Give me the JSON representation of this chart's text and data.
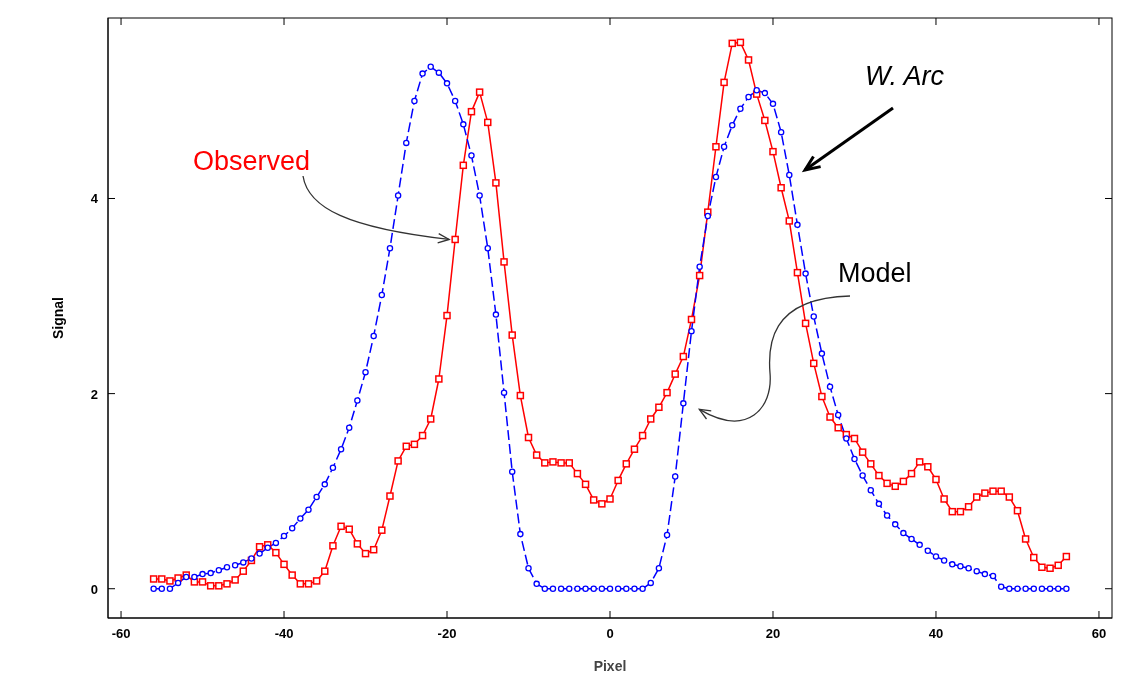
{
  "chart_data": {
    "type": "line",
    "xlabel": "Pixel",
    "ylabel": "Signal",
    "xlim": [
      -61.6,
      61.6
    ],
    "ylim": [
      -0.3,
      5.85
    ],
    "xticks": [
      -60,
      -40,
      -20,
      0,
      20,
      40,
      60
    ],
    "yticks": [
      0,
      2,
      4
    ],
    "grid": false,
    "legend": false,
    "x": [
      -56,
      -55,
      -54,
      -53,
      -52,
      -51,
      -50,
      -49,
      -48,
      -47,
      -46,
      -45,
      -44,
      -43,
      -42,
      -41,
      -40,
      -39,
      -38,
      -37,
      -36,
      -35,
      -34,
      -33,
      -32,
      -31,
      -30,
      -29,
      -28,
      -27,
      -26,
      -25,
      -24,
      -23,
      -22,
      -21,
      -20,
      -19,
      -18,
      -17,
      -16,
      -15,
      -14,
      -13,
      -12,
      -11,
      -10,
      -9,
      -8,
      -7,
      -6,
      -5,
      -4,
      -3,
      -2,
      -1,
      0,
      1,
      2,
      3,
      4,
      5,
      6,
      7,
      8,
      9,
      10,
      11,
      12,
      13,
      14,
      15,
      16,
      17,
      18,
      19,
      20,
      21,
      22,
      23,
      24,
      25,
      26,
      27,
      28,
      29,
      30,
      31,
      32,
      33,
      34,
      35,
      36,
      37,
      38,
      39,
      40,
      41,
      42,
      43,
      44,
      45,
      46,
      47,
      48,
      49,
      50,
      51,
      52,
      53,
      54,
      55,
      56
    ],
    "series": [
      {
        "name": "Observed",
        "color": "#ff0000",
        "marker": "square",
        "line_style": "solid",
        "values": [
          0.1,
          0.1,
          0.08,
          0.11,
          0.14,
          0.07,
          0.07,
          0.03,
          0.03,
          0.05,
          0.09,
          0.18,
          0.29,
          0.43,
          0.45,
          0.37,
          0.25,
          0.14,
          0.05,
          0.05,
          0.08,
          0.18,
          0.44,
          0.64,
          0.61,
          0.46,
          0.36,
          0.4,
          0.6,
          0.95,
          1.31,
          1.46,
          1.48,
          1.57,
          1.74,
          2.15,
          2.8,
          3.58,
          4.34,
          4.89,
          5.09,
          4.78,
          4.16,
          3.35,
          2.6,
          1.98,
          1.55,
          1.37,
          1.29,
          1.3,
          1.29,
          1.29,
          1.18,
          1.07,
          0.91,
          0.87,
          0.92,
          1.11,
          1.28,
          1.43,
          1.57,
          1.74,
          1.86,
          2.01,
          2.2,
          2.38,
          2.76,
          3.21,
          3.86,
          4.53,
          5.19,
          5.59,
          5.6,
          5.42,
          5.07,
          4.8,
          4.48,
          4.11,
          3.77,
          3.24,
          2.72,
          2.31,
          1.97,
          1.76,
          1.65,
          1.58,
          1.54,
          1.4,
          1.28,
          1.16,
          1.08,
          1.05,
          1.1,
          1.18,
          1.3,
          1.25,
          1.12,
          0.92,
          0.79,
          0.79,
          0.84,
          0.94,
          0.98,
          1.0,
          1.0,
          0.94,
          0.8,
          0.51,
          0.32,
          0.22,
          0.21,
          0.24,
          0.33
        ]
      },
      {
        "name": "Model",
        "color": "#0000ff",
        "marker": "circle",
        "line_style": "dashed",
        "values": [
          0,
          0,
          0,
          0.06,
          0.12,
          0.12,
          0.15,
          0.16,
          0.19,
          0.22,
          0.24,
          0.27,
          0.31,
          0.36,
          0.42,
          0.47,
          0.54,
          0.62,
          0.72,
          0.81,
          0.94,
          1.07,
          1.24,
          1.43,
          1.65,
          1.93,
          2.22,
          2.59,
          3.01,
          3.49,
          4.03,
          4.57,
          5.0,
          5.28,
          5.35,
          5.29,
          5.18,
          5.0,
          4.76,
          4.44,
          4.03,
          3.49,
          2.81,
          2.01,
          1.2,
          0.56,
          0.21,
          0.05,
          0,
          0,
          0,
          0,
          0,
          0,
          0,
          0,
          0,
          0,
          0,
          0,
          0,
          0.06,
          0.21,
          0.55,
          1.15,
          1.9,
          2.64,
          3.3,
          3.82,
          4.22,
          4.53,
          4.75,
          4.92,
          5.04,
          5.11,
          5.08,
          4.97,
          4.68,
          4.24,
          3.73,
          3.23,
          2.79,
          2.41,
          2.07,
          1.78,
          1.54,
          1.33,
          1.16,
          1.01,
          0.87,
          0.75,
          0.66,
          0.57,
          0.51,
          0.45,
          0.39,
          0.33,
          0.29,
          0.25,
          0.23,
          0.21,
          0.18,
          0.15,
          0.13,
          0.02,
          0,
          0,
          0,
          0,
          0,
          0,
          0,
          0
        ]
      }
    ],
    "annotations": [
      "W. Arc"
    ]
  }
}
